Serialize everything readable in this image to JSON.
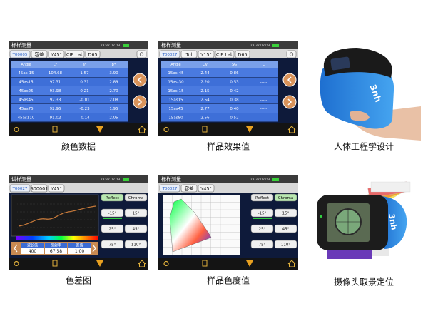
{
  "screens": [
    {
      "header": "标样测量",
      "time": "23:32 02.09",
      "tabs": [
        "T00005",
        "容差",
        "Y45°",
        "CIE Lab",
        "D65"
      ],
      "table": {
        "columns": [
          "Angle",
          "L*",
          "a*",
          "b*"
        ],
        "rows": [
          [
            "45as-15",
            "104.68",
            "1.57",
            "3.90"
          ],
          [
            "45as15",
            "97.31",
            "0.31",
            "2.89"
          ],
          [
            "45as25",
            "93.98",
            "0.21",
            "2.70"
          ],
          [
            "45as45",
            "92.33",
            "-0.01",
            "2.08"
          ],
          [
            "45as75",
            "92.96",
            "-0.23",
            "1.95"
          ],
          [
            "45as110",
            "91.02",
            "-0.14",
            "2.05"
          ]
        ]
      },
      "caption": "颜色数据"
    },
    {
      "header": "标样测量",
      "time": "23:32 02.09",
      "tabs": [
        "T00027",
        "Tol",
        "Y15°",
        "CIE Lab",
        "D65"
      ],
      "table": {
        "columns": [
          "Angle",
          "CV",
          "SG",
          "C"
        ],
        "rows": [
          [
            "15as-45",
            "2.44",
            "0.86",
            "-----"
          ],
          [
            "15as-30",
            "2.20",
            "0.53",
            "-----"
          ],
          [
            "15as-15",
            "2.15",
            "0.42",
            "-----"
          ],
          [
            "15as15",
            "2.54",
            "0.38",
            "-----"
          ],
          [
            "15as45",
            "2.77",
            "0.40",
            "-----"
          ],
          [
            "15as80",
            "2.56",
            "0.52",
            "-----"
          ]
        ]
      },
      "caption": "样品效果值"
    },
    {
      "header": "试样测量",
      "time": "23:32 02.09",
      "tabs": [
        "T00027",
        "S00001",
        "Y45°"
      ],
      "modes": [
        "Reflect",
        "Chroma"
      ],
      "angles": [
        "-15°",
        "15°",
        "25°",
        "45°",
        "75°",
        "110°"
      ],
      "readout": {
        "labels": [
          "波长值",
          "反射率",
          "差值"
        ],
        "values": [
          "400",
          "67.58",
          "1.00"
        ]
      },
      "caption": "色差图"
    },
    {
      "header": "标样测量",
      "time": "23:32 02.09",
      "tabs": [
        "T00027",
        "容差",
        "Y45°"
      ],
      "modes": [
        "Reflect",
        "Chroma"
      ],
      "angles": [
        "-15°",
        "15°",
        "25°",
        "45°",
        "75°",
        "110°"
      ],
      "caption": "样品色度值"
    }
  ],
  "photos": [
    {
      "logo": "3nh",
      "caption": "人体工程学设计"
    },
    {
      "logo": "3nh",
      "caption": "摄像头取景定位"
    }
  ]
}
